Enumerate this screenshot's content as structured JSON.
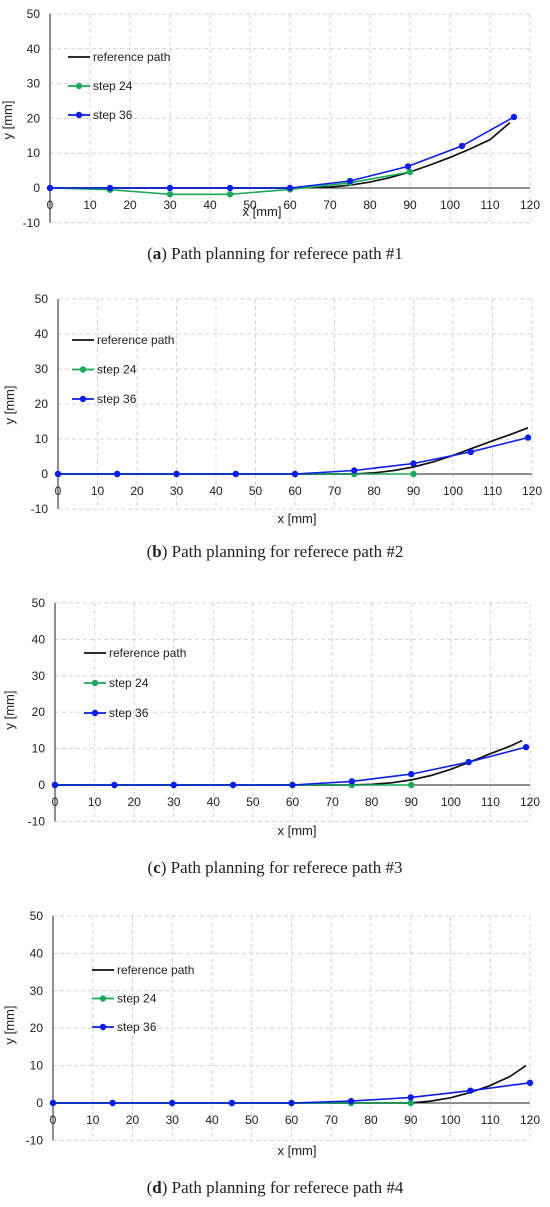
{
  "colors": {
    "reference": "#111111",
    "step24": "#1aa85a",
    "step36": "#0a1ee6",
    "grid": "#d4d4d4",
    "axis": "#222222"
  },
  "chart_data": [
    {
      "type": "line",
      "caption_letter": "a",
      "caption_text": "Path planning for referece path #1",
      "xlabel": "x [mm]",
      "ylabel": "y [mm]",
      "xlim": [
        0,
        120
      ],
      "ylim": [
        -10,
        50
      ],
      "xticks": [
        "0",
        "10",
        "20",
        "30",
        "40",
        "50",
        "60",
        "70",
        "80",
        "90",
        "100",
        "110",
        "120"
      ],
      "yticks": [
        "-10",
        "0",
        "10",
        "20",
        "30",
        "40",
        "50"
      ],
      "grid": true,
      "legend_position": "top-left",
      "series": [
        {
          "name": "reference path",
          "key": "reference",
          "markers": false,
          "x": [
            0,
            15,
            30,
            45,
            60,
            65,
            70,
            75,
            80,
            85,
            90,
            95,
            100,
            105,
            110,
            115
          ],
          "y": [
            0,
            0,
            0,
            0,
            0,
            0.1,
            0.3,
            0.8,
            1.7,
            3.0,
            4.6,
            6.6,
            8.8,
            11.2,
            13.9,
            18.8
          ]
        },
        {
          "name": "step 24",
          "key": "step24",
          "markers": true,
          "x": [
            0,
            15,
            30,
            45,
            60,
            75,
            90
          ],
          "y": [
            0,
            -0.5,
            -1.8,
            -1.8,
            -0.4,
            1.5,
            4.6
          ]
        },
        {
          "name": "step 36",
          "key": "step36",
          "markers": true,
          "x": [
            0,
            15,
            30,
            45,
            60,
            75,
            89.5,
            103,
            116
          ],
          "y": [
            0,
            0,
            0,
            0,
            0,
            2.0,
            6.2,
            12.1,
            20.4
          ]
        }
      ]
    },
    {
      "type": "line",
      "caption_letter": "b",
      "caption_text": "Path planning for referece path #2",
      "xlabel": "x [mm]",
      "ylabel": "y [mm]",
      "xlim": [
        0,
        120
      ],
      "ylim": [
        -10,
        50
      ],
      "xticks": [
        "0",
        "10",
        "20",
        "30",
        "40",
        "50",
        "60",
        "70",
        "80",
        "90",
        "100",
        "110",
        "120"
      ],
      "yticks": [
        "-10",
        "0",
        "10",
        "20",
        "30",
        "40",
        "50"
      ],
      "grid": true,
      "legend_position": "top-left",
      "series": [
        {
          "name": "reference path",
          "key": "reference",
          "markers": false,
          "x": [
            0,
            15,
            30,
            45,
            60,
            75,
            80,
            85,
            90,
            95,
            100,
            105,
            110,
            115,
            119
          ],
          "y": [
            0,
            0,
            0,
            0,
            0,
            0,
            0.3,
            1.0,
            2.0,
            3.5,
            5.3,
            7.4,
            9.5,
            11.5,
            13.2
          ]
        },
        {
          "name": "step 24",
          "key": "step24",
          "markers": true,
          "x": [
            0,
            15,
            30,
            45,
            60,
            75,
            90
          ],
          "y": [
            0,
            0,
            0,
            0,
            0,
            0,
            0
          ]
        },
        {
          "name": "step 36",
          "key": "step36",
          "markers": true,
          "x": [
            0,
            15,
            30,
            45,
            60,
            75,
            90,
            104.5,
            119
          ],
          "y": [
            0,
            0,
            0,
            0,
            0,
            1.0,
            3.0,
            6.3,
            10.4
          ]
        }
      ]
    },
    {
      "type": "line",
      "caption_letter": "c",
      "caption_text": "Path planning for referece path #3",
      "xlabel": "x [mm]",
      "ylabel": "y [mm]",
      "xlim": [
        0,
        120
      ],
      "ylim": [
        -10,
        50
      ],
      "xticks": [
        "0",
        "10",
        "20",
        "30",
        "40",
        "50",
        "60",
        "70",
        "80",
        "90",
        "100",
        "110",
        "120"
      ],
      "yticks": [
        "-10",
        "0",
        "10",
        "20",
        "30",
        "40",
        "50"
      ],
      "grid": true,
      "legend_position": "top-left",
      "series": [
        {
          "name": "reference path",
          "key": "reference",
          "markers": false,
          "x": [
            0,
            15,
            30,
            45,
            60,
            75,
            80,
            85,
            90,
            95,
            100,
            105,
            110,
            115,
            118
          ],
          "y": [
            0,
            0,
            0,
            0,
            0,
            0,
            0.2,
            0.6,
            1.4,
            2.6,
            4.3,
            6.4,
            8.6,
            10.7,
            12.2
          ]
        },
        {
          "name": "step 24",
          "key": "step24",
          "markers": true,
          "x": [
            0,
            15,
            30,
            45,
            60,
            75,
            90
          ],
          "y": [
            0,
            0,
            0,
            0,
            0,
            0,
            0
          ]
        },
        {
          "name": "step 36",
          "key": "step36",
          "markers": true,
          "x": [
            0,
            15,
            30,
            45,
            60,
            75,
            90,
            104.5,
            119
          ],
          "y": [
            0,
            0,
            0,
            0,
            0,
            1.0,
            3.0,
            6.3,
            10.4
          ]
        }
      ]
    },
    {
      "type": "line",
      "caption_letter": "d",
      "caption_text": "Path planning for referece path #4",
      "xlabel": "x [mm]",
      "ylabel": "y [mm]",
      "xlim": [
        0,
        120
      ],
      "ylim": [
        -10,
        50
      ],
      "xticks": [
        "0",
        "10",
        "20",
        "30",
        "40",
        "50",
        "60",
        "70",
        "80",
        "90",
        "100",
        "110",
        "120"
      ],
      "yticks": [
        "-10",
        "0",
        "10",
        "20",
        "30",
        "40",
        "50"
      ],
      "grid": true,
      "legend_position": "top-left",
      "series": [
        {
          "name": "reference path",
          "key": "reference",
          "markers": false,
          "x": [
            0,
            15,
            30,
            45,
            60,
            75,
            90,
            95,
            100,
            105,
            110,
            115,
            119
          ],
          "y": [
            0,
            0,
            0,
            0,
            0,
            0,
            0,
            0.5,
            1.4,
            2.8,
            4.7,
            7.1,
            10.0
          ]
        },
        {
          "name": "step 24",
          "key": "step24",
          "markers": true,
          "x": [
            0,
            15,
            30,
            45,
            60,
            75,
            90
          ],
          "y": [
            0,
            0,
            0,
            0,
            0,
            0,
            0
          ]
        },
        {
          "name": "step 36",
          "key": "step36",
          "markers": true,
          "x": [
            0,
            15,
            30,
            45,
            60,
            75,
            90,
            105,
            120
          ],
          "y": [
            0,
            0,
            0,
            0,
            0,
            0.5,
            1.5,
            3.3,
            5.4
          ]
        }
      ]
    }
  ]
}
